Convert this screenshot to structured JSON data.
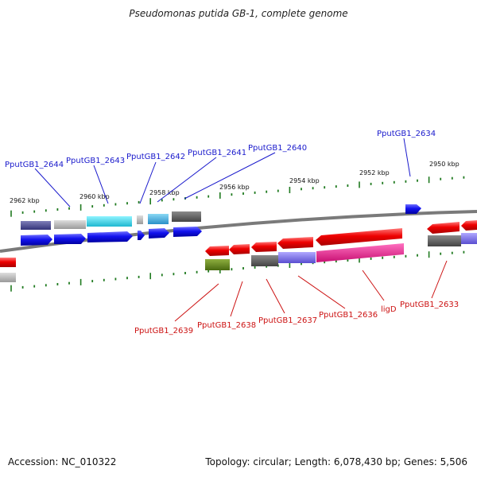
{
  "title": "Pseudomonas putida GB-1, complete genome",
  "footer": {
    "accession": "Accession: NC_010322",
    "summary": "Topology: circular; Length: 6,078,430 bp; Genes: 5,506"
  },
  "scale_labels": [
    "2962 kbp",
    "2960 kbp",
    "2958 kbp",
    "2956 kbp",
    "2954 kbp",
    "2952 kbp",
    "2950 kbp"
  ],
  "top_labels": [
    "PputGB1_2644",
    "PputGB1_2643",
    "PputGB1_2642",
    "PputGB1_2641",
    "PputGB1_2640",
    "PputGB1_2634"
  ],
  "bottom_labels": [
    "PputGB1_2639",
    "PputGB1_2638",
    "PputGB1_2637",
    "PputGB1_2636",
    "ligD",
    "PputGB1_2633"
  ],
  "colors": {
    "top_label": "#1a1acc",
    "bottom_label": "#cc1111",
    "tick": "#1f7a1f",
    "backbone": "#7a7a7a"
  }
}
